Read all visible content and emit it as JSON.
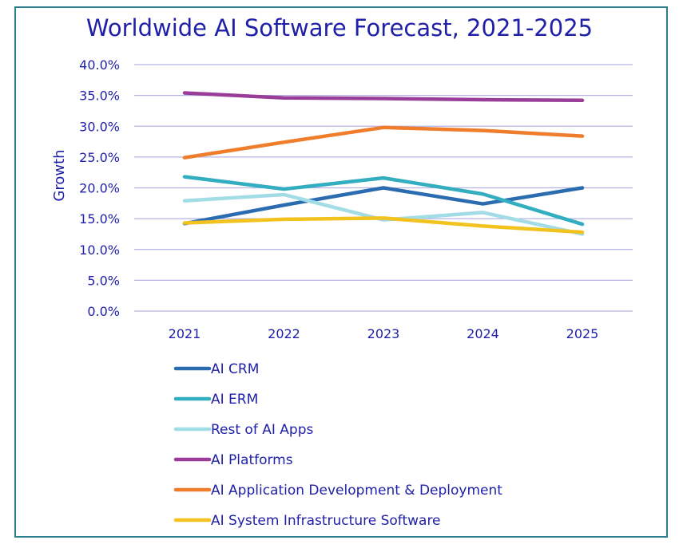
{
  "chart_data": {
    "type": "line",
    "title": "Worldwide AI Software Forecast, 2021-2025",
    "xlabel": "",
    "ylabel": "Growth",
    "x": [
      "2021",
      "2022",
      "2023",
      "2024",
      "2025"
    ],
    "ylim": [
      0,
      40
    ],
    "yticks": [
      "0.0%",
      "5.0%",
      "10.0%",
      "15.0%",
      "20.0%",
      "25.0%",
      "30.0%",
      "35.0%",
      "40.0%"
    ],
    "grid": true,
    "legend_position": "bottom",
    "series": [
      {
        "name": "AI CRM",
        "color": "#2b6cb0",
        "values": [
          14.2,
          17.2,
          20.0,
          17.4,
          20.0
        ]
      },
      {
        "name": "AI ERM",
        "color": "#33adc0",
        "values": [
          21.8,
          19.8,
          21.6,
          19.0,
          14.1
        ]
      },
      {
        "name": "Rest of AI Apps",
        "color": "#a2dce6",
        "values": [
          17.9,
          18.9,
          14.8,
          16.0,
          12.5
        ]
      },
      {
        "name": "AI Platforms",
        "color": "#993d99",
        "values": [
          35.4,
          34.6,
          34.5,
          34.3,
          34.2
        ]
      },
      {
        "name": "AI Application Development & Deployment",
        "color": "#ef7d2b",
        "values": [
          24.9,
          27.4,
          29.8,
          29.3,
          28.4
        ]
      },
      {
        "name": "AI System Infrastructure Software",
        "color": "#f2c21f",
        "values": [
          14.3,
          14.9,
          15.1,
          13.8,
          12.8
        ]
      }
    ]
  }
}
